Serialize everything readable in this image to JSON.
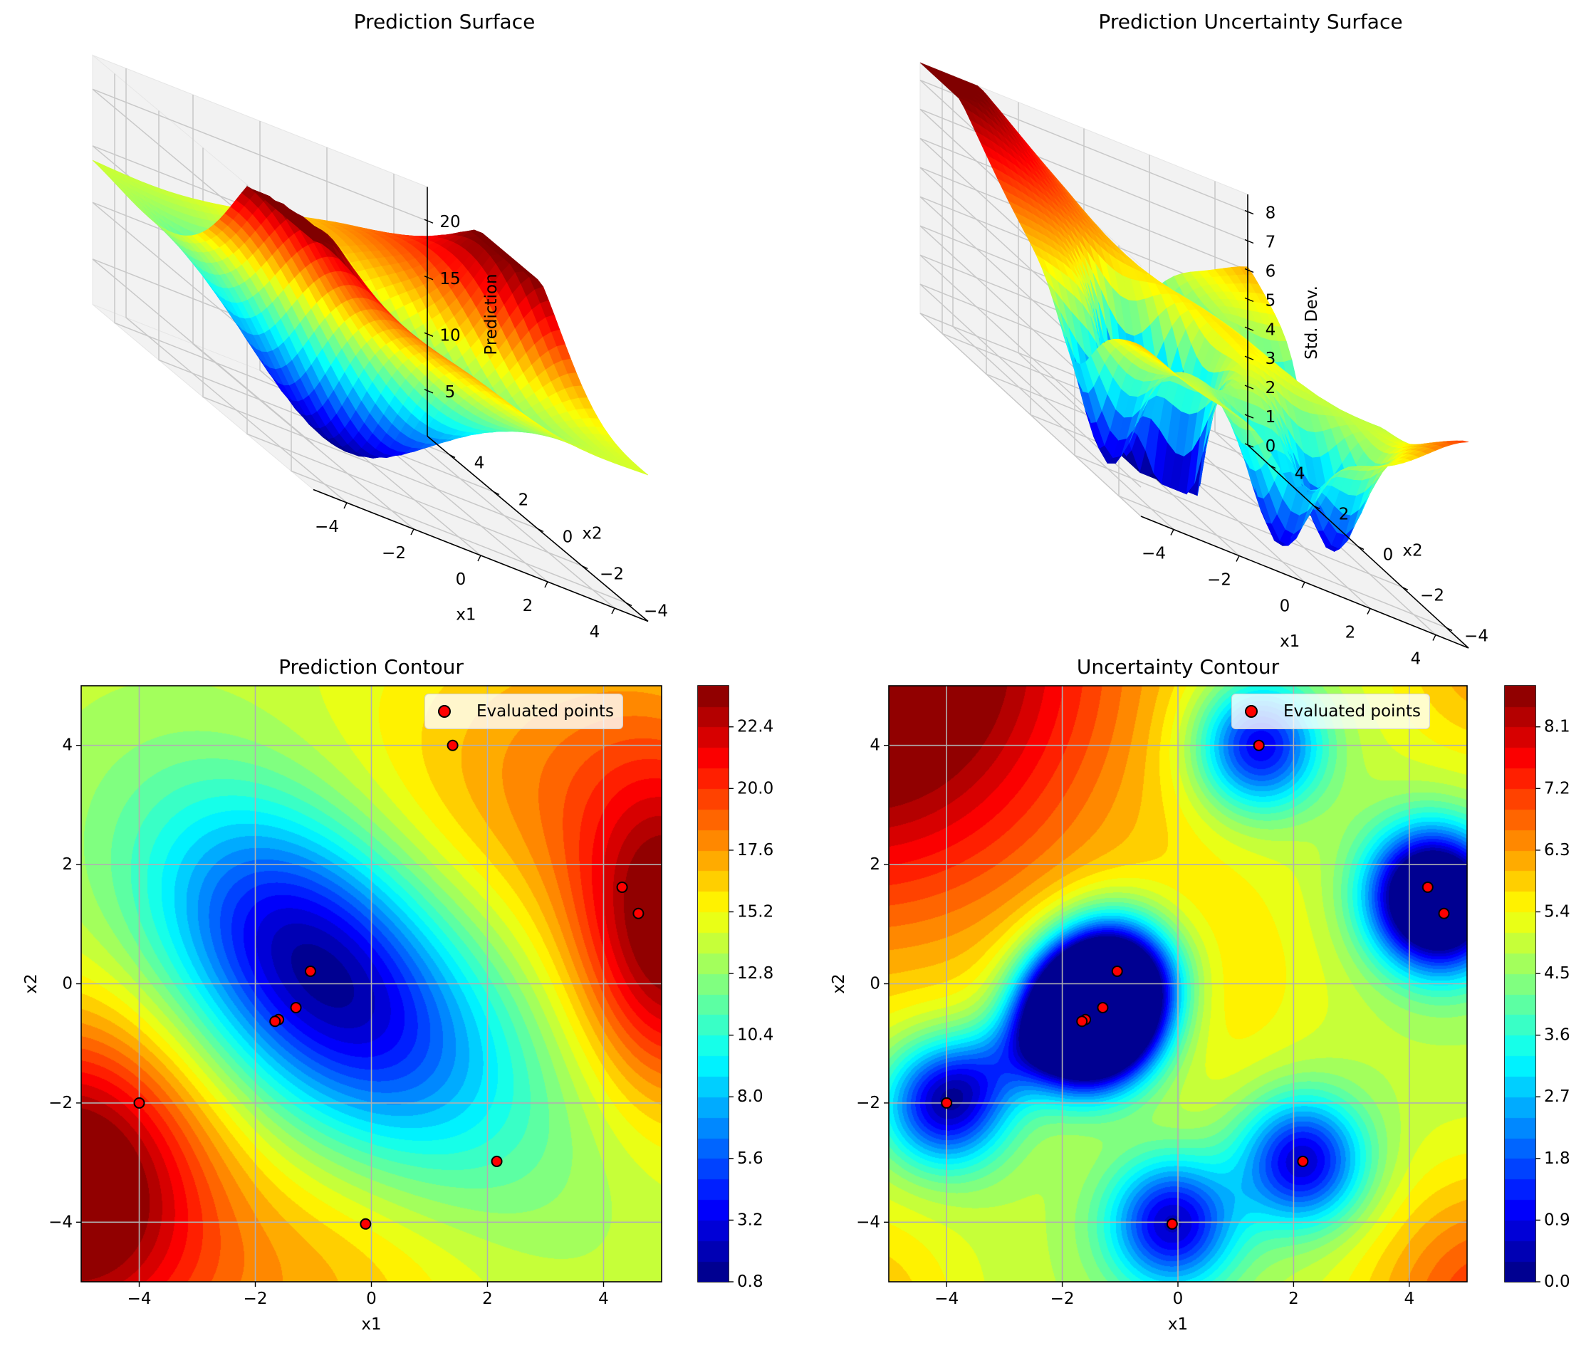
{
  "figure": {
    "panels": {
      "surface_pred": {
        "title": "Prediction Surface",
        "xlabel": "x1",
        "ylabel": "x2",
        "zlabel": "Prediction"
      },
      "surface_unc": {
        "title": "Prediction Uncertainty Surface",
        "xlabel": "x1",
        "ylabel": "x2",
        "zlabel": "Std. Dev."
      },
      "contour_pred": {
        "title": "Prediction Contour",
        "xlabel": "x1",
        "ylabel": "x2",
        "legend": "Evaluated points"
      },
      "contour_unc": {
        "title": "Uncertainty Contour",
        "xlabel": "x1",
        "ylabel": "x2",
        "legend": "Evaluated points"
      }
    }
  },
  "chart_data": [
    {
      "type": "surface3d",
      "title": "Prediction Surface",
      "xlabel": "x1",
      "ylabel": "x2",
      "zlabel": "Prediction",
      "xlim": [
        -5,
        5
      ],
      "ylim": [
        -5,
        5
      ],
      "zlim": [
        1,
        23
      ],
      "xticks": [
        "−4",
        "−2",
        "0",
        "2",
        "4"
      ],
      "yticks": [
        "−4",
        "−2",
        "0",
        "2",
        "4"
      ],
      "zticks": [
        "5",
        "10",
        "15",
        "20"
      ],
      "colormap": "jet",
      "grid": true
    },
    {
      "type": "surface3d",
      "title": "Prediction Uncertainty Surface",
      "xlabel": "x1",
      "ylabel": "x2",
      "zlabel": "Std. Dev.",
      "xlim": [
        -5,
        5
      ],
      "ylim": [
        -5,
        5
      ],
      "zlim": [
        0,
        8.6
      ],
      "xticks": [
        "−4",
        "−2",
        "0",
        "2",
        "4"
      ],
      "yticks": [
        "−4",
        "−2",
        "0",
        "2",
        "4"
      ],
      "zticks": [
        "0",
        "1",
        "2",
        "3",
        "4",
        "5",
        "6",
        "7",
        "8"
      ],
      "colormap": "jet",
      "grid": true
    },
    {
      "type": "contourf",
      "title": "Prediction Contour",
      "xlabel": "x1",
      "ylabel": "x2",
      "xlim": [
        -5,
        5
      ],
      "ylim": [
        -5,
        5
      ],
      "xticks": [
        "−4",
        "−2",
        "0",
        "2",
        "4"
      ],
      "yticks": [
        "−4",
        "−2",
        "0",
        "2",
        "4"
      ],
      "colormap": "jet",
      "levels": {
        "min": 0.8,
        "max": 24.0,
        "step": 0.8
      },
      "colorbar_ticks": [
        "0.8",
        "3.2",
        "5.6",
        "8.0",
        "10.4",
        "12.8",
        "15.2",
        "17.6",
        "20.0",
        "22.4"
      ],
      "legend": {
        "label": "Evaluated points",
        "position": "upper right"
      },
      "grid": true,
      "points": [
        {
          "x": 1.4,
          "y": 4.0
        },
        {
          "x": 4.32,
          "y": 1.62
        },
        {
          "x": 4.6,
          "y": 1.18
        },
        {
          "x": -1.05,
          "y": 0.21
        },
        {
          "x": -1.3,
          "y": -0.4
        },
        {
          "x": -1.6,
          "y": -0.6
        },
        {
          "x": -1.66,
          "y": -0.63
        },
        {
          "x": -4.0,
          "y": -2.0
        },
        {
          "x": 2.16,
          "y": -2.98
        },
        {
          "x": -0.1,
          "y": -4.03
        }
      ]
    },
    {
      "type": "contourf",
      "title": "Uncertainty Contour",
      "xlabel": "x1",
      "ylabel": "x2",
      "xlim": [
        -5,
        5
      ],
      "ylim": [
        -5,
        5
      ],
      "xticks": [
        "−4",
        "−2",
        "0",
        "2",
        "4"
      ],
      "yticks": [
        "−4",
        "−2",
        "0",
        "2",
        "4"
      ],
      "colormap": "jet",
      "levels": {
        "min": 0.0,
        "max": 8.7,
        "step": 0.3
      },
      "colorbar_ticks": [
        "0.0",
        "0.9",
        "1.8",
        "2.7",
        "3.6",
        "4.5",
        "5.4",
        "6.3",
        "7.2",
        "8.1"
      ],
      "legend": {
        "label": "Evaluated points",
        "position": "upper right"
      },
      "grid": true,
      "points": [
        {
          "x": 1.4,
          "y": 4.0
        },
        {
          "x": 4.32,
          "y": 1.62
        },
        {
          "x": 4.6,
          "y": 1.18
        },
        {
          "x": -1.05,
          "y": 0.21
        },
        {
          "x": -1.3,
          "y": -0.4
        },
        {
          "x": -1.6,
          "y": -0.6
        },
        {
          "x": -1.66,
          "y": -0.63
        },
        {
          "x": -4.0,
          "y": -2.0
        },
        {
          "x": 2.16,
          "y": -2.98
        },
        {
          "x": -0.1,
          "y": -4.03
        }
      ]
    }
  ]
}
